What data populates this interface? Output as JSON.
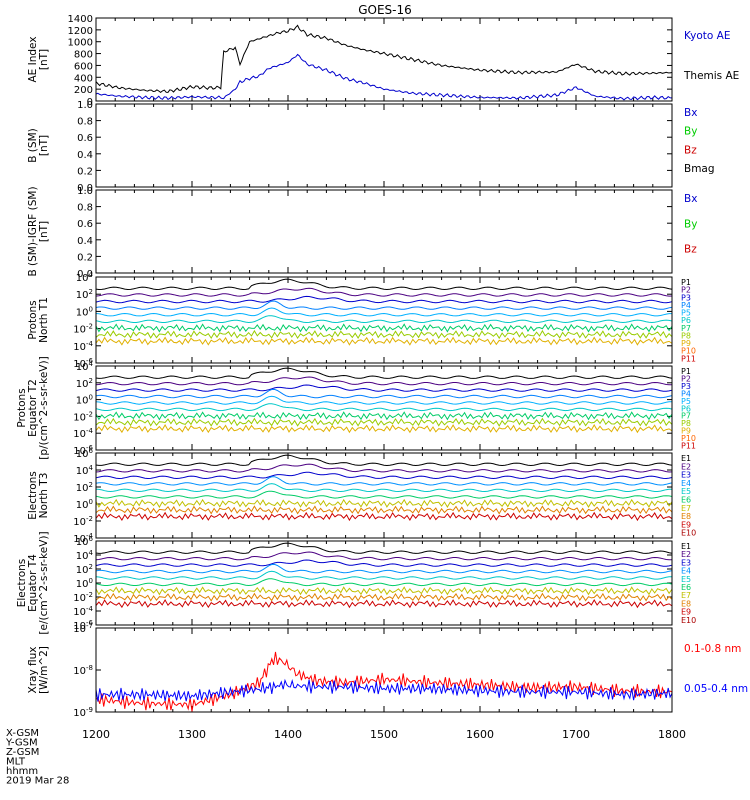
{
  "title": "GOES-16",
  "bottom_labels": [
    "X-GSM",
    "Y-GSM",
    "Z-GSM",
    "MLT",
    "hhmm",
    "2019 Mar 28"
  ],
  "chart_data": [
    {
      "type": "line",
      "ylabel": "AE Index [nT]",
      "ylim": [
        0,
        1400
      ],
      "yticks": [
        "0",
        "200",
        "400",
        "600",
        "800",
        "1000",
        "1200",
        "1400"
      ],
      "x": [
        1200,
        1225,
        1250,
        1275,
        1300,
        1320,
        1330,
        1333,
        1345,
        1350,
        1360,
        1370,
        1380,
        1390,
        1400,
        1410,
        1420,
        1440,
        1460,
        1480,
        1500,
        1530,
        1560,
        1600,
        1640,
        1680,
        1700,
        1720,
        1750,
        1780,
        1800
      ],
      "series": [
        {
          "name": "Kyoto AE",
          "color": "#0000cc",
          "values": [
            120,
            80,
            60,
            50,
            70,
            60,
            60,
            50,
            200,
            320,
            380,
            420,
            550,
            600,
            650,
            780,
            620,
            520,
            380,
            300,
            200,
            130,
            100,
            60,
            50,
            100,
            230,
            80,
            40,
            60,
            50
          ]
        },
        {
          "name": "Themis AE",
          "color": "#000000",
          "values": [
            300,
            220,
            180,
            160,
            240,
            220,
            230,
            830,
            900,
            620,
            1000,
            1050,
            1100,
            1150,
            1180,
            1250,
            1120,
            1060,
            940,
            860,
            800,
            700,
            600,
            520,
            480,
            490,
            620,
            500,
            460,
            470,
            480
          ]
        }
      ]
    },
    {
      "type": "line",
      "ylabel": "B (SM) [nT]",
      "ylim": [
        0,
        1
      ],
      "yticks": [
        "0.0",
        "0.2",
        "0.4",
        "0.6",
        "0.8",
        "1.0"
      ],
      "series": [
        {
          "name": "Bx",
          "color": "#0000cc",
          "values": []
        },
        {
          "name": "By",
          "color": "#00cc00",
          "values": []
        },
        {
          "name": "Bz",
          "color": "#cc0000",
          "values": []
        },
        {
          "name": "Bmag",
          "color": "#000000",
          "values": []
        }
      ]
    },
    {
      "type": "line",
      "ylabel": "B (SM)-IGRF (SM) [nT]",
      "ylim": [
        0,
        1
      ],
      "yticks": [
        "0.0",
        "0.2",
        "0.4",
        "0.6",
        "0.8",
        "1.0"
      ],
      "series": [
        {
          "name": "Bx",
          "color": "#0000cc",
          "values": []
        },
        {
          "name": "By",
          "color": "#00cc00",
          "values": []
        },
        {
          "name": "Bz",
          "color": "#cc0000",
          "values": []
        }
      ]
    },
    {
      "type": "line",
      "ylabel": "Protons North T1",
      "yscale": "log",
      "ylim": [
        1e-06,
        10000.0
      ],
      "yticks": [
        "10^-6",
        "10^-4",
        "10^-2",
        "10^0",
        "10^2",
        "10^4"
      ],
      "legend": [
        "P1",
        "P2",
        "P3",
        "P4",
        "P5",
        "P6",
        "P7",
        "P8",
        "P9",
        "P10",
        "P11"
      ]
    },
    {
      "type": "line",
      "ylabel": "Protons Equator T2 [p/(cm^2-s-sr-keV)]",
      "yscale": "log",
      "ylim": [
        1e-06,
        10000.0
      ],
      "yticks": [
        "10^-6",
        "10^-4",
        "10^-2",
        "10^0",
        "10^2",
        "10^4"
      ],
      "legend": [
        "P1",
        "P2",
        "P3",
        "P4",
        "P5",
        "P6",
        "P7",
        "P8",
        "P9",
        "P10",
        "P11"
      ]
    },
    {
      "type": "line",
      "ylabel": "Electrons North T3",
      "yscale": "log",
      "ylim": [
        0.0001,
        1000000.0
      ],
      "yticks": [
        "10^-4",
        "10^-2",
        "10^0",
        "10^2",
        "10^4",
        "10^6"
      ],
      "legend": [
        "E1",
        "E2",
        "E3",
        "E4",
        "E5",
        "E6",
        "E7",
        "E8",
        "E9",
        "E10"
      ]
    },
    {
      "type": "line",
      "ylabel": "Electrons Equator T4 [e/(cm^2-s-sr-keV)]",
      "yscale": "log",
      "ylim": [
        1e-06,
        1000000.0
      ],
      "yticks": [
        "10^-6",
        "10^-4",
        "10^-2",
        "10^0",
        "10^2",
        "10^4",
        "10^6"
      ],
      "legend": [
        "E1",
        "E2",
        "E3",
        "E4",
        "E5",
        "E6",
        "E7",
        "E8",
        "E9",
        "E10"
      ]
    },
    {
      "type": "line",
      "ylabel": "Xray flux [W/m^2]",
      "yscale": "log",
      "ylim": [
        1e-09,
        1e-07
      ],
      "yticks": [
        "10^-9",
        "10^-8",
        "10^-7"
      ],
      "x": [
        1200,
        1250,
        1300,
        1340,
        1370,
        1385,
        1395,
        1410,
        1430,
        1460,
        1500,
        1550,
        1600,
        1650,
        1700,
        1750,
        1800
      ],
      "series": [
        {
          "name": "0.1-0.8 nm",
          "color": "#ff0000",
          "values": [
            2e-09,
            1.6e-09,
            1.5e-09,
            2.6e-09,
            5e-09,
            1.9e-08,
            1.6e-08,
            8e-09,
            5.5e-09,
            5e-09,
            6e-09,
            5e-09,
            4.5e-09,
            3.8e-09,
            4e-09,
            3.2e-09,
            3e-09
          ]
        },
        {
          "name": "0.05-0.4 nm",
          "color": "#0000ff",
          "values": [
            2.6e-09,
            2.6e-09,
            2.4e-09,
            3e-09,
            3.5e-09,
            4e-09,
            4.5e-09,
            4.2e-09,
            4e-09,
            4e-09,
            3.6e-09,
            3.6e-09,
            3.2e-09,
            3e-09,
            3e-09,
            2.6e-09,
            2.8e-09
          ]
        }
      ]
    }
  ],
  "xaxis": {
    "ticks": [
      1200,
      1300,
      1400,
      1500,
      1600,
      1700,
      1800
    ],
    "range": [
      1200,
      1800
    ]
  }
}
